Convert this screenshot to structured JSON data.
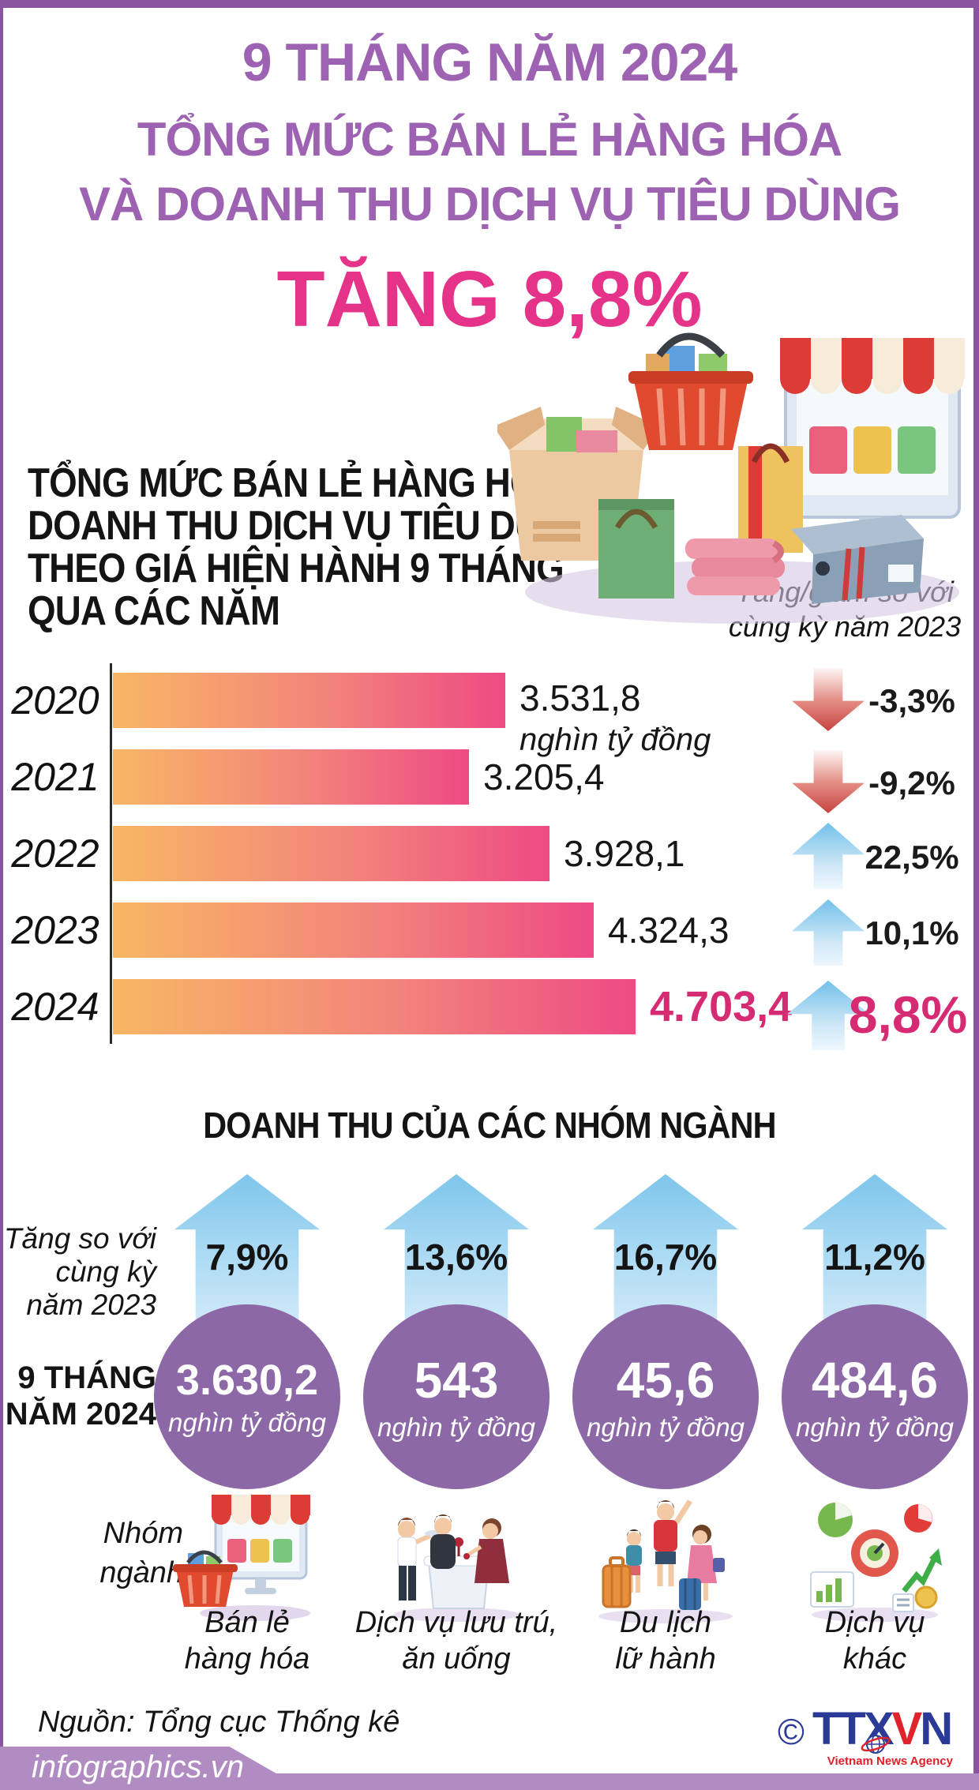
{
  "colors": {
    "frame_purple": "#8a54a2",
    "title_purple": "#9d62b2",
    "accent_pink": "#e43388",
    "emphasis_pink": "#d62a72",
    "bar_gradient_start": "#f8b664",
    "bar_gradient_end": "#ee4a84",
    "circle_purple": "#8c68a6",
    "arrow_up_blue": "#74c0e9",
    "arrow_down_red": "#c74440",
    "footer_strip": "#b18cc2"
  },
  "header": {
    "period": "9 THÁNG NĂM 2024",
    "title_line1": "TỔNG MỨC BÁN LẺ HÀNG HÓA",
    "title_line2": "VÀ DOANH THU DỊCH VỤ TIÊU DÙNG",
    "highlight": "TĂNG 8,8%"
  },
  "chart_section": {
    "heading_line1": "TỔNG MỨC BÁN LẺ HÀNG HÓA VÀ",
    "heading_line2": "DOANH THU DỊCH VỤ TIÊU DÙNG",
    "heading_line3": "THEO GIÁ HIỆN HÀNH 9 THÁNG",
    "heading_line4": "QUA CÁC NĂM",
    "note_line1": "Tăng/giảm so với",
    "note_line2": "cùng kỳ năm 2023"
  },
  "chart_data": [
    {
      "type": "bar",
      "orientation": "horizontal",
      "title": "Tổng mức bán lẻ hàng hóa và doanh thu dịch vụ tiêu dùng theo giá hiện hành 9 tháng qua các năm",
      "unit": "nghìn tỷ đồng",
      "categories": [
        "2020",
        "2021",
        "2022",
        "2023",
        "2024"
      ],
      "values": [
        3531.8,
        3205.4,
        3928.1,
        4324.3,
        4703.4
      ],
      "value_labels": [
        "3.531,8",
        "3.205,4",
        "3.928,1",
        "4.324,3",
        "4.703,4"
      ],
      "changes_vs_same_period_prior_year": [
        "-3,3%",
        "-9,2%",
        "22,5%",
        "10,1%",
        "8,8%"
      ],
      "change_directions": [
        "down",
        "down",
        "up",
        "up",
        "up"
      ],
      "highlight_index": 4,
      "xlim": [
        0,
        4703.4
      ],
      "grid": false,
      "legend": false
    },
    {
      "type": "bar",
      "title": "DOANH THU CỦA CÁC NHÓM NGÀNH",
      "unit": "nghìn tỷ đồng",
      "categories": [
        "Bán lẻ hàng hóa",
        "Dịch vụ lưu trú, ăn uống",
        "Du lịch lữ hành",
        "Dịch vụ khác"
      ],
      "values": [
        3630.2,
        543,
        45.6,
        484.6
      ],
      "value_labels": [
        "3.630,2",
        "543",
        "45,6",
        "484,6"
      ],
      "growth_vs_same_period_2023": [
        "7,9%",
        "13,6%",
        "16,7%",
        "11,2%"
      ],
      "period": "9 tháng năm 2024"
    }
  ],
  "groups_section": {
    "title": "DOANH THU CỦA CÁC NHÓM NGÀNH",
    "change_label_l1": "Tăng so với",
    "change_label_l2": "cùng kỳ",
    "change_label_l3": "năm 2023",
    "period_label_l1": "9 THÁNG",
    "period_label_l2": "NĂM 2024",
    "group_label_l1": "Nhóm",
    "group_label_l2": "ngành"
  },
  "groups": [
    {
      "change": "7,9%",
      "value": "3.630,2",
      "unit": "nghìn tỷ đồng",
      "name_l1": "Bán lẻ",
      "name_l2": "hàng hóa",
      "icon": "retail-store-icon"
    },
    {
      "change": "13,6%",
      "value": "543",
      "unit": "nghìn tỷ đồng",
      "name_l1": "Dịch vụ lưu trú,",
      "name_l2": "ăn uống",
      "icon": "restaurant-icon"
    },
    {
      "change": "16,7%",
      "value": "45,6",
      "unit": "nghìn tỷ đồng",
      "name_l1": "Du lịch",
      "name_l2": "lữ hành",
      "icon": "travel-icon"
    },
    {
      "change": "11,2%",
      "value": "484,6",
      "unit": "nghìn tỷ đồng",
      "name_l1": "Dịch vụ",
      "name_l2": "khác",
      "icon": "misc-services-icon"
    }
  ],
  "icons": {
    "shopping-illustration": "isometric online-shopping scene (monitor with awning, basket, bags, boxes)",
    "retail-store-icon": "monitor storefront with shopping basket",
    "restaurant-icon": "waiter serving seated couple at table",
    "travel-icon": "family of travelers with luggage",
    "misc-services-icon": "pie charts, gauge and growth arrow",
    "down-arrow-icon": "red gradient arrow pointing down",
    "up-arrow-icon": "blue gradient arrow pointing up",
    "globe-icon": "globe with orbit ring in news-agency logo"
  },
  "footer": {
    "source": "Nguồn: Tổng cục Thống kê",
    "brand": "infographics.vn",
    "agency": {
      "copyright": "©",
      "t1": "TTX",
      "t2": "V",
      "t3": "N",
      "caption": "Vietnam News Agency"
    }
  }
}
